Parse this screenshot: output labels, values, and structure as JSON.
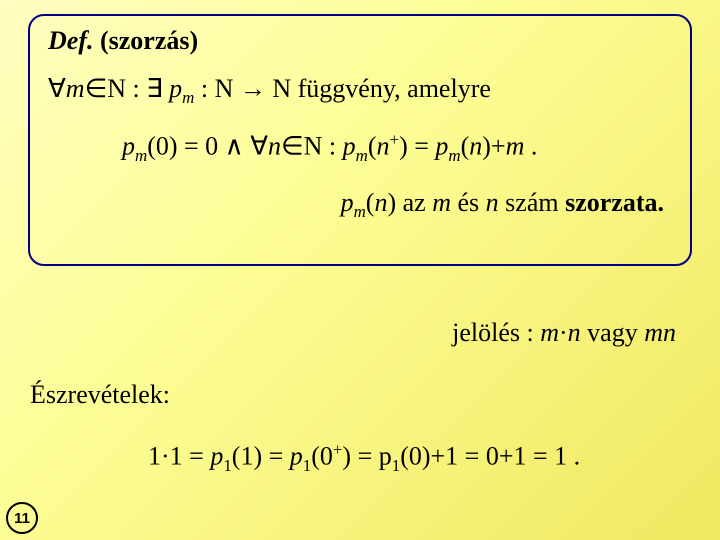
{
  "def": {
    "title_prefix": "Def.",
    "title_rest": " (szorzás)",
    "line1_a": "∀",
    "line1_b": "m",
    "line1_c": "∈",
    "line1_d": "N : ∃  ",
    "line1_e": "p",
    "line1_f": "m",
    "line1_g": " : N → N függvény, amelyre",
    "line2_a": "p",
    "line2_b": "m",
    "line2_c": "(0) = 0  ∧  ∀",
    "line2_d": "n",
    "line2_e": "∈",
    "line2_f": "N :  ",
    "line2_g": "p",
    "line2_h": "m",
    "line2_i": "(",
    "line2_j": "n",
    "line2_k": "+",
    "line2_l": ") = ",
    "line2_m": "p",
    "line2_n": "m",
    "line2_o": "(",
    "line2_p": "n",
    "line2_q": ")+",
    "line2_r": "m",
    "line2_s": " .",
    "line3_a": "p",
    "line3_b": "m",
    "line3_c": "(",
    "line3_d": "n",
    "line3_e": ") az ",
    "line3_f": "m",
    "line3_g": " és ",
    "line3_h": "n",
    "line3_i": " szám ",
    "line3_j": "szorzata."
  },
  "jelo": {
    "a": "jelölés : ",
    "b": "m",
    "c": "·",
    "d": "n",
    "e": "  vagy  ",
    "f": "mn"
  },
  "eszrev": "Észrevételek:",
  "calc": {
    "a": "1·1 = ",
    "b": "p",
    "c": "1",
    "d": "(1) = ",
    "e": "p",
    "f": "1",
    "g": "(0",
    "h": "+",
    "i": ") = p",
    "j": "1",
    "k": "(0)+1 = 0+1 = 1 ."
  },
  "pagenum": "11"
}
